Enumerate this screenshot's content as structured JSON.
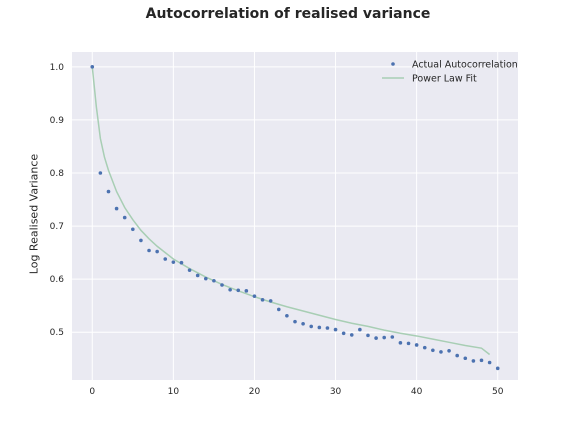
{
  "chart_data": {
    "type": "scatter",
    "title": "Autocorrelation of realised variance",
    "xlabel": "",
    "ylabel": "Log Realised Variance",
    "xlim": [
      -2.5,
      52.5
    ],
    "ylim": [
      0.41,
      1.028
    ],
    "xticks": [
      "0",
      "10",
      "20",
      "30",
      "40",
      "50"
    ],
    "yticks": [
      "0.5",
      "0.6",
      "0.7",
      "0.8",
      "0.9",
      "1.0"
    ],
    "grid": true,
    "legend_position": "top-right",
    "series": [
      {
        "name": "Actual Autocorrelation",
        "kind": "scatter",
        "color": "#4c72b0",
        "x": [
          0,
          1,
          2,
          3,
          4,
          5,
          6,
          7,
          8,
          9,
          10,
          11,
          12,
          13,
          14,
          15,
          16,
          17,
          18,
          19,
          20,
          21,
          22,
          23,
          24,
          25,
          26,
          27,
          28,
          29,
          30,
          31,
          32,
          33,
          34,
          35,
          36,
          37,
          38,
          39,
          40,
          41,
          42,
          43,
          44,
          45,
          46,
          47,
          48,
          49,
          50
        ],
        "y": [
          1.0,
          0.8,
          0.765,
          0.733,
          0.716,
          0.694,
          0.673,
          0.654,
          0.652,
          0.638,
          0.632,
          0.631,
          0.617,
          0.607,
          0.601,
          0.597,
          0.589,
          0.58,
          0.579,
          0.578,
          0.568,
          0.561,
          0.559,
          0.543,
          0.531,
          0.52,
          0.516,
          0.511,
          0.509,
          0.508,
          0.505,
          0.498,
          0.495,
          0.505,
          0.494,
          0.489,
          0.49,
          0.491,
          0.48,
          0.479,
          0.476,
          0.471,
          0.466,
          0.463,
          0.465,
          0.456,
          0.451,
          0.446,
          0.447,
          0.443,
          0.432
        ]
      },
      {
        "name": "Power Law Fit",
        "kind": "line",
        "color": "#a8ceb4",
        "x": [
          0,
          0.5,
          1,
          1.5,
          2,
          3,
          4,
          5,
          6,
          7,
          8,
          9,
          10,
          12,
          14,
          16,
          18,
          20,
          22,
          24,
          26,
          28,
          30,
          32,
          34,
          36,
          38,
          40,
          42,
          44,
          46,
          48,
          49
        ],
        "y": [
          1.0,
          0.925,
          0.865,
          0.83,
          0.805,
          0.765,
          0.735,
          0.712,
          0.692,
          0.676,
          0.662,
          0.65,
          0.638,
          0.62,
          0.604,
          0.59,
          0.578,
          0.567,
          0.557,
          0.548,
          0.54,
          0.532,
          0.524,
          0.517,
          0.511,
          0.504,
          0.498,
          0.493,
          0.487,
          0.481,
          0.475,
          0.47,
          0.458
        ]
      }
    ]
  }
}
